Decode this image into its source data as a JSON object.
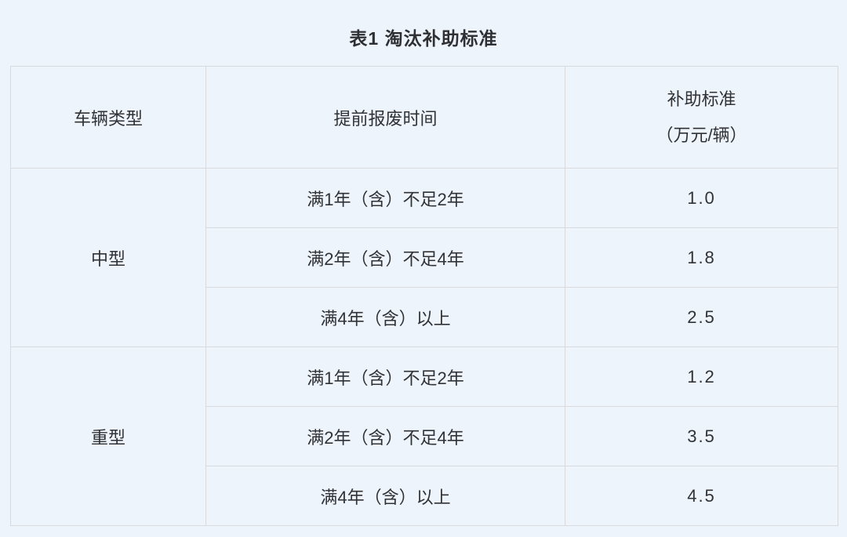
{
  "page": {
    "background_color": "#eef4fb",
    "border_color": "#d8dade",
    "text_color": "#303236"
  },
  "title": "表1 淘汰补助标准",
  "table": {
    "headers": {
      "vehicle_type": "车辆类型",
      "scrap_time": "提前报废时间",
      "subsidy_line1": "补助标准",
      "subsidy_line2": "（万元/辆）"
    },
    "groups": [
      {
        "type": "中型",
        "rows": [
          {
            "time": "满1年（含）不足2年",
            "value": "1.0"
          },
          {
            "time": "满2年（含）不足4年",
            "value": "1.8"
          },
          {
            "time": "满4年（含）以上",
            "value": "2.5"
          }
        ]
      },
      {
        "type": "重型",
        "rows": [
          {
            "time": "满1年（含）不足2年",
            "value": "1.2"
          },
          {
            "time": "满2年（含）不足4年",
            "value": "3.5"
          },
          {
            "time": "满4年（含）以上",
            "value": "4.5"
          }
        ]
      }
    ]
  },
  "chart_data": {
    "type": "table",
    "title": "表1 淘汰补助标准",
    "columns": [
      "车辆类型",
      "提前报废时间",
      "补助标准（万元/辆）"
    ],
    "rows": [
      [
        "中型",
        "满1年（含）不足2年",
        1.0
      ],
      [
        "中型",
        "满2年（含）不足4年",
        1.8
      ],
      [
        "中型",
        "满4年（含）以上",
        2.5
      ],
      [
        "重型",
        "满1年（含）不足2年",
        1.2
      ],
      [
        "重型",
        "满2年（含）不足4年",
        3.5
      ],
      [
        "重型",
        "满4年（含）以上",
        4.5
      ]
    ]
  }
}
